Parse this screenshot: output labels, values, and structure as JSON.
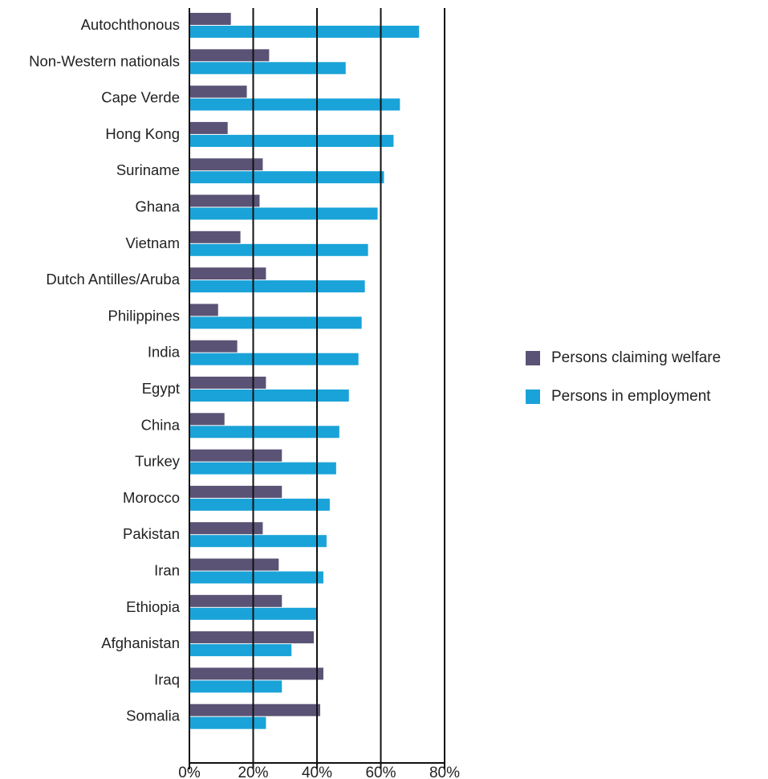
{
  "chart_data": {
    "type": "bar",
    "orientation": "horizontal",
    "categories": [
      "Autochthonous",
      "Non-Western nationals",
      "Cape Verde",
      "Hong Kong",
      "Suriname",
      "Ghana",
      "Vietnam",
      "Dutch Antilles/Aruba",
      "Philippines",
      "India",
      "Egypt",
      "China",
      "Turkey",
      "Morocco",
      "Pakistan",
      "Iran",
      "Ethiopia",
      "Afghanistan",
      "Iraq",
      "Somalia"
    ],
    "series": [
      {
        "name": "Persons claiming welfare",
        "color": "#5b5375",
        "values": [
          13,
          25,
          18,
          12,
          23,
          22,
          16,
          24,
          9,
          15,
          24,
          11,
          29,
          29,
          23,
          28,
          29,
          39,
          42,
          41
        ]
      },
      {
        "name": "Persons in employment",
        "color": "#1aa3d8",
        "values": [
          72,
          49,
          66,
          64,
          61,
          59,
          56,
          55,
          54,
          53,
          50,
          47,
          46,
          44,
          43,
          42,
          40,
          32,
          29,
          24
        ]
      }
    ],
    "xlim": [
      0,
      80
    ],
    "xticks": [
      "0%",
      "20%",
      "40%",
      "60%",
      "80%"
    ],
    "grid": "vertical",
    "legend_position": "right"
  }
}
